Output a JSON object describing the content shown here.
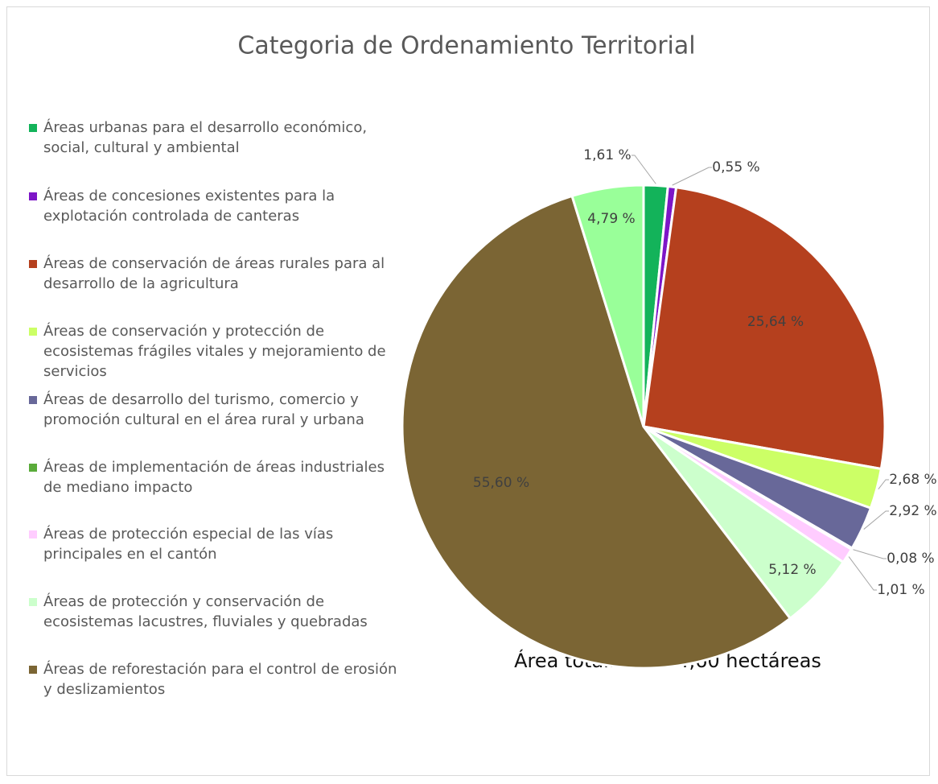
{
  "chart_data": {
    "type": "pie",
    "title": "Categoria de Ordenamiento Territorial",
    "categories": [
      "Áreas urbanas para el desarrollo económico, social, cultural y ambiental",
      "Áreas de concesiones existentes para la explotación controlada de canteras",
      "Áreas de conservación de áreas rurales para al desarrollo de la agricultura",
      "Áreas de conservación y protección de ecosistemas frágiles vitales y mejoramiento de servicios",
      "Áreas de desarrollo del turismo, comercio y promoción cultural en el área rural y urbana",
      "Áreas de implementación de áreas industriales de mediano impacto",
      "Áreas de protección especial de las vías principales en el cantón",
      "Áreas de protección y conservación de ecosistemas lacustres, fluviales y quebradas",
      "Áreas de reforestación para el control de erosión y deslizamientos",
      null
    ],
    "values": [
      1.61,
      0.55,
      25.64,
      2.68,
      2.92,
      0.08,
      1.01,
      5.12,
      55.6,
      4.79
    ],
    "value_labels": [
      "1,61 %",
      "0,55 %",
      "25,64 %",
      "2,68 %",
      "2,92 %",
      "0,08 %",
      "1,01 %",
      "5,12 %",
      "55,60 %",
      "4,79 %"
    ],
    "colors": [
      "#13b35a",
      "#7d16c7",
      "#b5401e",
      "#ccff66",
      "#686899",
      "#5aab3a",
      "#ffccff",
      "#ccffcc",
      "#7b6534",
      "#99ff99"
    ],
    "annotation": "Área total: 12.544,60 hectáreas"
  }
}
